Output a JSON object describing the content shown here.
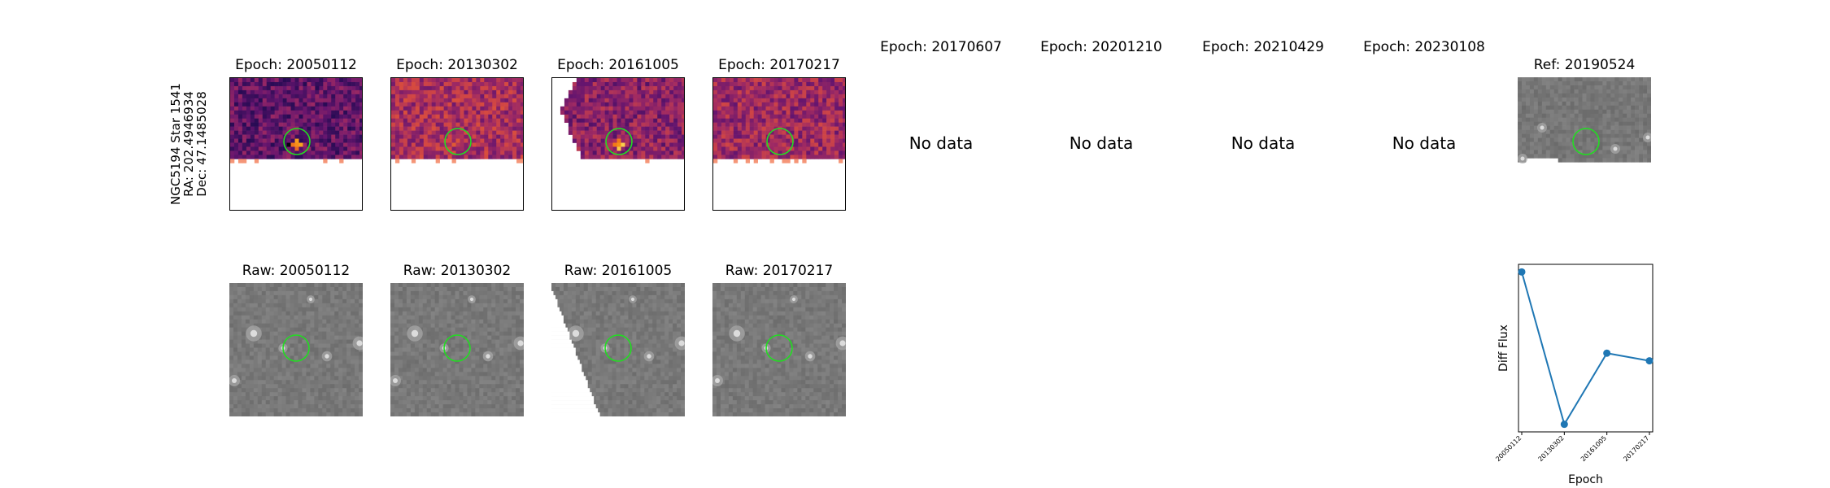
{
  "target": {
    "name": "NGC5194 Star 1541",
    "ra": "RA: 202.4946934",
    "dec": "Dec: 47.1485028"
  },
  "diff_panels": [
    {
      "title": "Epoch: 20050112",
      "has_data": true,
      "colormap": "magma"
    },
    {
      "title": "Epoch: 20130302",
      "has_data": true,
      "colormap": "magma"
    },
    {
      "title": "Epoch: 20161005",
      "has_data": true,
      "colormap": "magma"
    },
    {
      "title": "Epoch: 20170217",
      "has_data": true,
      "colormap": "magma"
    },
    {
      "title": "Epoch: 20170607",
      "has_data": false,
      "message": "No data"
    },
    {
      "title": "Epoch: 20201210",
      "has_data": false,
      "message": "No data"
    },
    {
      "title": "Epoch: 20210429",
      "has_data": false,
      "message": "No data"
    },
    {
      "title": "Epoch: 20230108",
      "has_data": false,
      "message": "No data"
    }
  ],
  "ref_panel": {
    "title": "Ref: 20190524",
    "colormap": "gray"
  },
  "raw_panels": [
    {
      "title": "Raw: 20050112"
    },
    {
      "title": "Raw: 20130302"
    },
    {
      "title": "Raw: 20161005"
    },
    {
      "title": "Raw: 20170217"
    }
  ],
  "aperture_color": "#22dd22",
  "chart_data": {
    "type": "line",
    "x": [
      "20050112",
      "20130302",
      "20161005",
      "20170217"
    ],
    "series": [
      {
        "values": [
          0.9,
          -0.3,
          0.26,
          0.2
        ],
        "color": "#1f77b4"
      }
    ],
    "xlabel": "Epoch",
    "ylabel": "Diff Flux",
    "yticks_shown": false,
    "grid": false
  }
}
